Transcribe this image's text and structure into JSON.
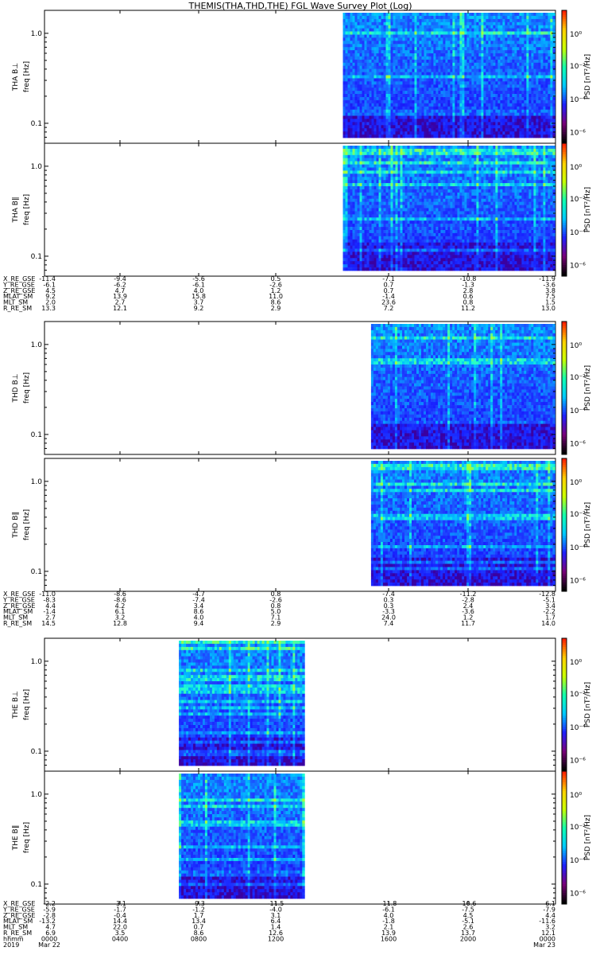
{
  "title": "THEMIS(THA,THD,THE) FGL Wave Survey Plot (Log)",
  "chart_data": {
    "type": "heatmap",
    "title": "THEMIS(THA,THD,THE) FGL Wave Survey Plot (Log)",
    "y_scale": "log",
    "ylim": [
      0.06,
      1.8
    ],
    "ytick_labels": [
      "1.0",
      "0.1"
    ],
    "ylabel": "freq [Hz]",
    "colorbar_label": "PSD [nT²/Hz]",
    "colorbar_ticks": [
      "10⁰",
      "10⁻²",
      "10⁻⁴",
      "10⁻⁶"
    ],
    "colors": [
      "#000000",
      "#7a007a",
      "#2020ff",
      "#00c8ff",
      "#10ffb0",
      "#c8ff00",
      "#ffd000",
      "#ff2000"
    ],
    "x_labels": [
      "0000",
      "0400",
      "0800",
      "1200",
      "1600",
      "2000",
      "0000"
    ],
    "x_units": "hhmm",
    "x_dates_left": [
      "2019",
      "Mar 22"
    ],
    "x_date_right": "Mar 23",
    "groups": [
      {
        "probe": "THA",
        "panels": [
          {
            "label": "THA B⊥",
            "data_start_frac": 0.584,
            "data_end_frac": 0.999
          },
          {
            "label": "THA B∥",
            "data_start_frac": 0.584,
            "data_end_frac": 0.999
          }
        ],
        "ephemeris": [
          {
            "name": "X_RE_GSE",
            "values": [
              "-11.4",
              "-9.4",
              "-5.6",
              "0.5",
              "-7.1",
              "-10.8",
              "-11.9"
            ]
          },
          {
            "name": "Y_RE_GSE",
            "values": [
              "-6.1",
              "-6.2",
              "-6.1",
              "-2.6",
              "0.7",
              "-1.3",
              "-3.6"
            ]
          },
          {
            "name": "Z_RE_GSE",
            "values": [
              "4.5",
              "4.7",
              "4.0",
              "1.2",
              "0.7",
              "2.8",
              "3.8"
            ]
          },
          {
            "name": "MLAT_SM",
            "values": [
              "9.2",
              "13.9",
              "15.8",
              "11.0",
              "-1.4",
              "0.6",
              "7.5"
            ]
          },
          {
            "name": "MLT_SM",
            "values": [
              "2.0",
              "2.7",
              "3.7",
              "8.6",
              "23.6",
              "0.8",
              "1.5"
            ]
          },
          {
            "name": "R_RE_SM",
            "values": [
              "13.3",
              "12.1",
              "9.2",
              "2.9",
              "7.2",
              "11.2",
              "13.0"
            ]
          }
        ]
      },
      {
        "probe": "THD",
        "panels": [
          {
            "label": "THD B⊥",
            "data_start_frac": 0.639,
            "data_end_frac": 0.999
          },
          {
            "label": "THD B∥",
            "data_start_frac": 0.639,
            "data_end_frac": 0.999
          }
        ],
        "ephemeris": [
          {
            "name": "X_RE_GSE",
            "values": [
              "-11.0",
              "-8.6",
              "-4.7",
              "0.8",
              "-7.4",
              "-11.2",
              "-12.8"
            ]
          },
          {
            "name": "Y_RE_GSE",
            "values": [
              "-8.3",
              "-8.6",
              "-7.4",
              "-2.6",
              "0.3",
              "-2.8",
              "-5.1"
            ]
          },
          {
            "name": "Z_RE_GSE",
            "values": [
              "4.4",
              "4.2",
              "3.4",
              "0.8",
              "0.3",
              "2.4",
              "3.4"
            ]
          },
          {
            "name": "MLAT_SM",
            "values": [
              "-1.4",
              "6.1",
              "8.6",
              "5.0",
              "-3.3",
              "-3.6",
              "-2.2"
            ]
          },
          {
            "name": "MLT_SM",
            "values": [
              "2.7",
              "3.2",
              "4.0",
              "7.1",
              "24.0",
              "1.2",
              "1.7"
            ]
          },
          {
            "name": "R_RE_SM",
            "values": [
              "14.5",
              "12.8",
              "9.4",
              "2.9",
              "7.4",
              "11.7",
              "14.0"
            ]
          }
        ]
      },
      {
        "probe": "THE",
        "panels": [
          {
            "label": "THE B⊥",
            "data_start_frac": 0.263,
            "data_end_frac": 0.509
          },
          {
            "label": "THE B∥",
            "data_start_frac": 0.263,
            "data_end_frac": 0.509
          }
        ],
        "ephemeris": [
          {
            "name": "X_RE_GSE",
            "values": [
              "-2.2",
              "-3.1",
              "-9.3",
              "-11.5",
              "-11.8",
              "-10.6",
              "-6.1"
            ]
          },
          {
            "name": "Y_RE_GSE",
            "values": [
              "-5.9",
              "-1.7",
              "-1.2",
              "-4.0",
              "-6.1",
              "-7.5",
              "-7.9"
            ]
          },
          {
            "name": "Z_RE_GSE",
            "values": [
              "-2.8",
              "-0.4",
              "1.7",
              "3.1",
              "4.0",
              "4.5",
              "4.4"
            ]
          },
          {
            "name": "MLAT_SM",
            "values": [
              "-13.2",
              "14.4",
              "13.4",
              "6.4",
              "-1.8",
              "-5.1",
              "-11.6"
            ]
          },
          {
            "name": "MLT_SM",
            "values": [
              "4.7",
              "22.0",
              "0.7",
              "1.4",
              "2.1",
              "2.6",
              "3.2"
            ]
          },
          {
            "name": "R_RE_SM",
            "values": [
              "6.9",
              "3.5",
              "8.6",
              "12.6",
              "13.9",
              "13.7",
              "12.1"
            ]
          }
        ]
      }
    ]
  }
}
